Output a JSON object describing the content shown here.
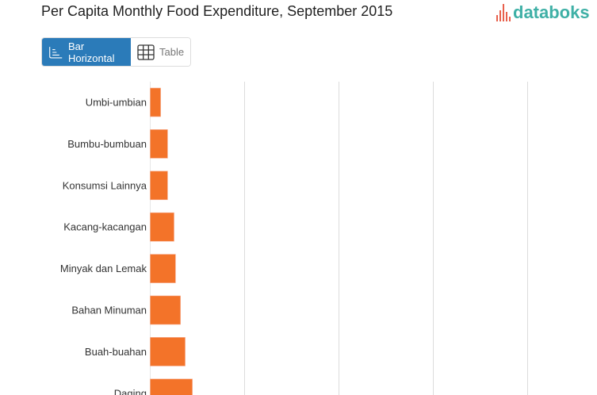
{
  "title": "Per Capita Monthly Food Expenditure, September 2015",
  "logo": {
    "text": "databoks",
    "colors": {
      "bars": "#e8604c",
      "text": "#3fb0a6"
    }
  },
  "view_toggle": {
    "options": [
      {
        "label": "Bar Horizontal",
        "icon": "bar-horizontal-icon",
        "active": true
      },
      {
        "label": "Table",
        "icon": "table-grid-icon",
        "active": false
      }
    ],
    "active_color": "#2b7bb9"
  },
  "chart_data": {
    "type": "bar",
    "orientation": "horizontal",
    "categories": [
      "Umbi-umbian",
      "Bumbu-bumbuan",
      "Konsumsi Lainnya",
      "Kacang-kacangan",
      "Minyak dan Lemak",
      "Bahan Minuman",
      "Buah-buahan",
      "Daging"
    ],
    "values": [
      5500,
      9200,
      9200,
      12600,
      13400,
      16000,
      18500,
      22300
    ],
    "xlim": [
      0,
      200000
    ],
    "grid": true,
    "bar_color": "#f37329"
  }
}
